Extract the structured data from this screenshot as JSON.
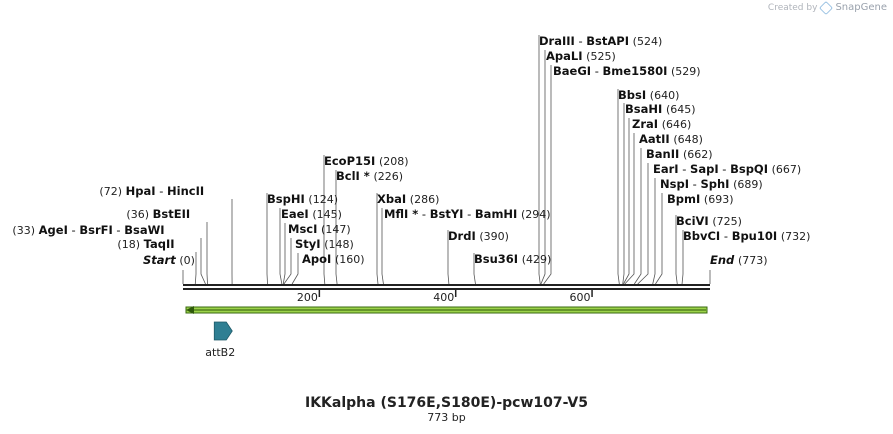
{
  "credit": {
    "created_by": "Created by",
    "brand": "SnapGene"
  },
  "title": "IKKalpha (S176E,S180E)-pcw107-V5",
  "size_label": "773 bp",
  "sequence_length": 773,
  "ticks": [
    {
      "pos": 200,
      "label": "200"
    },
    {
      "pos": 400,
      "label": "400"
    },
    {
      "pos": 600,
      "label": "600"
    }
  ],
  "features": [
    {
      "name": "attB2",
      "start": 40,
      "end": 65,
      "direction": "forward",
      "color": "#2f7f93"
    }
  ],
  "primer_bar": {
    "color": "#9cd34a",
    "edge_color": "#3a6a10"
  },
  "enzymes": [
    {
      "id": "start",
      "names": [
        "Start"
      ],
      "site": 0,
      "pos_label": "(0)",
      "italic": true,
      "side": "right"
    },
    {
      "id": "taqi",
      "names": [
        "TaqII"
      ],
      "site": 18,
      "pos_label": "(18)",
      "side": "left"
    },
    {
      "id": "agei",
      "names": [
        "AgeI",
        "BsrFI",
        "BsaWI"
      ],
      "site": 33,
      "pos_label": "(33)",
      "side": "left"
    },
    {
      "id": "bsteii",
      "names": [
        "BstEII"
      ],
      "site": 36,
      "pos_label": "(36)",
      "side": "left"
    },
    {
      "id": "hpai",
      "names": [
        "HpaI",
        "HincII"
      ],
      "site": 72,
      "pos_label": "(72)",
      "side": "left"
    },
    {
      "id": "bsphi",
      "names": [
        "BspHI"
      ],
      "site": 124,
      "pos_label": "(124)",
      "side": "right"
    },
    {
      "id": "eaei",
      "names": [
        "EaeI"
      ],
      "site": 145,
      "pos_label": "(145)",
      "side": "right"
    },
    {
      "id": "msci",
      "names": [
        "MscI"
      ],
      "site": 147,
      "pos_label": "(147)",
      "side": "right"
    },
    {
      "id": "styi",
      "names": [
        "StyI"
      ],
      "site": 148,
      "pos_label": "(148)",
      "side": "right"
    },
    {
      "id": "apoi",
      "names": [
        "ApoI"
      ],
      "site": 160,
      "pos_label": "(160)",
      "side": "right"
    },
    {
      "id": "ecop15i",
      "names": [
        "EcoP15I"
      ],
      "site": 208,
      "pos_label": "(208)",
      "side": "right"
    },
    {
      "id": "bcli",
      "names": [
        "BclI *"
      ],
      "site": 226,
      "pos_label": "(226)",
      "side": "right"
    },
    {
      "id": "xbai",
      "names": [
        "XbaI"
      ],
      "site": 286,
      "pos_label": "(286)",
      "side": "right"
    },
    {
      "id": "mfli",
      "names": [
        "MflI *",
        "BstYI",
        "BamHI"
      ],
      "site": 294,
      "pos_label": "(294)",
      "side": "right"
    },
    {
      "id": "drdi",
      "names": [
        "DrdI"
      ],
      "site": 390,
      "pos_label": "(390)",
      "side": "right"
    },
    {
      "id": "bsu36i",
      "names": [
        "Bsu36I"
      ],
      "site": 429,
      "pos_label": "(429)",
      "side": "right"
    },
    {
      "id": "draiii",
      "names": [
        "DraIII",
        "BstAPI"
      ],
      "site": 524,
      "pos_label": "(524)",
      "side": "right"
    },
    {
      "id": "apali",
      "names": [
        "ApaLI"
      ],
      "site": 525,
      "pos_label": "(525)",
      "side": "right"
    },
    {
      "id": "baegi",
      "names": [
        "BaeGI",
        "Bme1580I"
      ],
      "site": 529,
      "pos_label": "(529)",
      "side": "right"
    },
    {
      "id": "bbsi",
      "names": [
        "BbsI"
      ],
      "site": 640,
      "pos_label": "(640)",
      "side": "right"
    },
    {
      "id": "bsahi",
      "names": [
        "BsaHI"
      ],
      "site": 645,
      "pos_label": "(645)",
      "side": "right"
    },
    {
      "id": "zrai",
      "names": [
        "ZraI"
      ],
      "site": 646,
      "pos_label": "(646)",
      "side": "right"
    },
    {
      "id": "aatii",
      "names": [
        "AatII"
      ],
      "site": 648,
      "pos_label": "(648)",
      "side": "right"
    },
    {
      "id": "banii",
      "names": [
        "BanII"
      ],
      "site": 662,
      "pos_label": "(662)",
      "side": "right"
    },
    {
      "id": "eari",
      "names": [
        "EarI",
        "SapI",
        "BspQI"
      ],
      "site": 667,
      "pos_label": "(667)",
      "side": "right"
    },
    {
      "id": "nspi",
      "names": [
        "NspI",
        "SphI"
      ],
      "site": 689,
      "pos_label": "(689)",
      "side": "right"
    },
    {
      "id": "bpmi",
      "names": [
        "BpmI"
      ],
      "site": 693,
      "pos_label": "(693)",
      "side": "right"
    },
    {
      "id": "bcivi",
      "names": [
        "BciVI"
      ],
      "site": 725,
      "pos_label": "(725)",
      "side": "right"
    },
    {
      "id": "bbvci",
      "names": [
        "BbvCI",
        "Bpu10I"
      ],
      "site": 732,
      "pos_label": "(732)",
      "side": "right"
    },
    {
      "id": "end",
      "names": [
        "End"
      ],
      "site": 773,
      "pos_label": "(773)",
      "italic": true,
      "side": "right"
    }
  ]
}
